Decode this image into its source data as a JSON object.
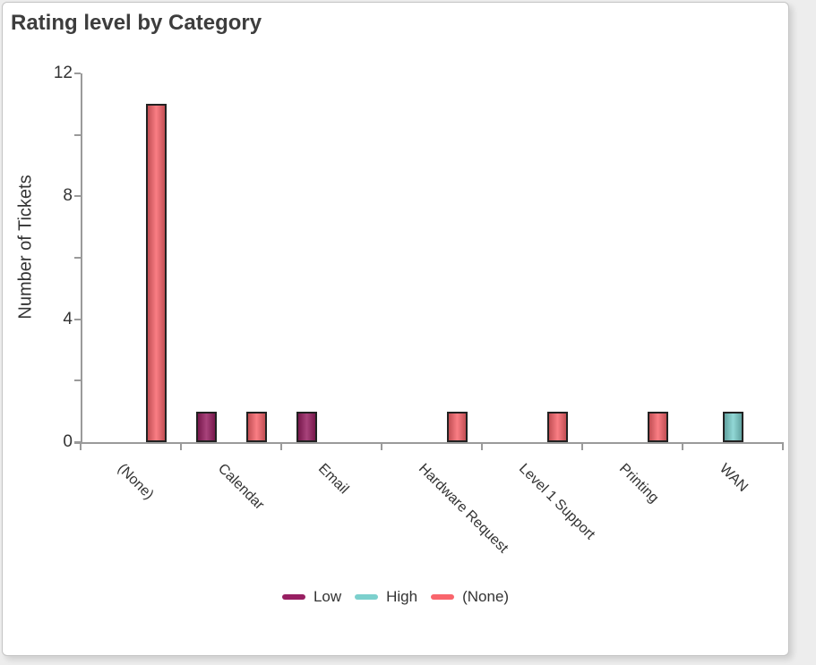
{
  "window": {
    "background_color": "#ededed",
    "card_background": "#ffffff",
    "card_border_color": "#c4c4c4"
  },
  "chart_data": {
    "type": "bar",
    "title": "Rating level by Category",
    "xlabel": "",
    "ylabel": "Number of Tickets",
    "categories": [
      "(None)",
      "Calendar",
      "Email",
      "Hardware Request",
      "Level 1 Support",
      "Printing",
      "WAN"
    ],
    "series": [
      {
        "name": "Low",
        "color": "#981F62",
        "values": [
          0,
          1,
          1,
          0,
          0,
          0,
          0
        ]
      },
      {
        "name": "High",
        "color": "#7CD0CD",
        "values": [
          0,
          0,
          0,
          0,
          0,
          0,
          1
        ]
      },
      {
        "name": "(None)",
        "color": "#F9656C",
        "values": [
          11,
          1,
          0,
          1,
          1,
          1,
          0
        ]
      }
    ],
    "ylim": [
      0,
      12
    ],
    "ytick_labels": [
      "0",
      "4",
      "8",
      "12"
    ],
    "ytick_values": [
      0,
      4,
      8,
      12
    ],
    "yminor_tick_values": [
      2,
      6,
      10
    ],
    "grid": false,
    "legend_position": "bottom-center",
    "bar_outline_color": "#222222",
    "axis_color": "#9a9a9a",
    "text_color": "#333333",
    "title_color": "#3d3d3d"
  }
}
